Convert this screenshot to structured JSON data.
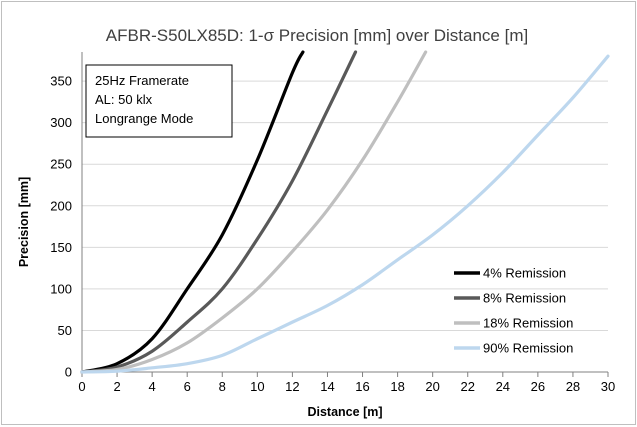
{
  "chart_data": {
    "type": "line",
    "title": "AFBR-S50LX85D: 1-σ Precision [mm] over Distance [m]",
    "xlabel": "Distance [m]",
    "ylabel": "Precision [mm]",
    "xlim": [
      0,
      30
    ],
    "ylim": [
      0,
      385
    ],
    "xticks": [
      0,
      2,
      4,
      6,
      8,
      10,
      12,
      14,
      16,
      18,
      20,
      22,
      24,
      26,
      28,
      30
    ],
    "yticks": [
      0,
      50,
      100,
      150,
      200,
      250,
      300,
      350
    ],
    "grid": true,
    "legend_position": "bottom-right",
    "annotation": [
      "25Hz  Framerate",
      "AL: 50 klx",
      "Longrange Mode"
    ],
    "series": [
      {
        "name": "4% Remission",
        "color": "#000000",
        "x": [
          0,
          2,
          4,
          6,
          8,
          10,
          12,
          12.6
        ],
        "y": [
          0,
          10,
          40,
          100,
          165,
          255,
          360,
          385
        ]
      },
      {
        "name": "8% Remission",
        "color": "#595959",
        "x": [
          0,
          2,
          4,
          6,
          8,
          10,
          12,
          14,
          15.6
        ],
        "y": [
          0,
          6,
          25,
          60,
          100,
          160,
          230,
          315,
          385
        ]
      },
      {
        "name": "18% Remission",
        "color": "#bfbfbf",
        "x": [
          0,
          2,
          4,
          6,
          8,
          10,
          12,
          14,
          16,
          18,
          19.6
        ],
        "y": [
          0,
          3,
          15,
          35,
          65,
          100,
          145,
          195,
          255,
          325,
          385
        ]
      },
      {
        "name": "90% Remission",
        "color": "#bdd7ee",
        "x": [
          0,
          2,
          4,
          6,
          8,
          10,
          12,
          14,
          16,
          18,
          20,
          22,
          24,
          26,
          28,
          30
        ],
        "y": [
          0,
          1,
          5,
          10,
          20,
          40,
          60,
          80,
          105,
          135,
          165,
          200,
          240,
          285,
          330,
          380
        ]
      }
    ]
  }
}
